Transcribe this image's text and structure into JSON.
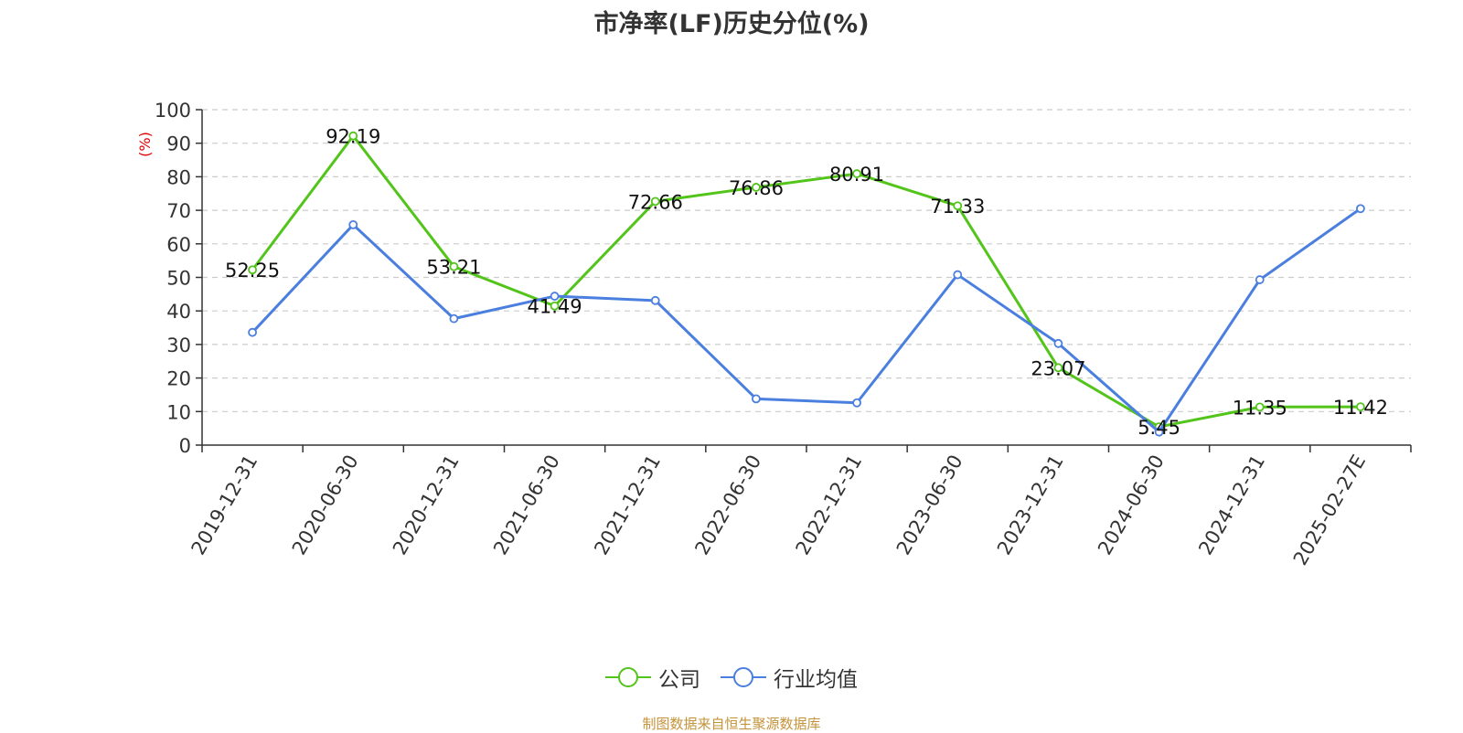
{
  "chart_data": {
    "type": "line",
    "title": "市净率(LF)历史分位(%)",
    "ylabel": "(%)",
    "xlabel": "",
    "ylim": [
      0,
      100
    ],
    "yticks": [
      0,
      10,
      20,
      30,
      40,
      50,
      60,
      70,
      80,
      90,
      100
    ],
    "categories": [
      "2019-12-31",
      "2020-06-30",
      "2020-12-31",
      "2021-06-30",
      "2021-12-31",
      "2022-06-30",
      "2022-12-31",
      "2023-06-30",
      "2023-12-31",
      "2024-06-30",
      "2024-12-31",
      "2025-02-27E"
    ],
    "series": [
      {
        "name": "公司",
        "color": "#52c41a",
        "values": [
          52.25,
          92.19,
          53.21,
          41.49,
          72.66,
          76.86,
          80.91,
          71.33,
          23.07,
          5.45,
          11.35,
          11.42
        ],
        "show_labels": true
      },
      {
        "name": "行业均值",
        "color": "#4b7fdf",
        "values": [
          33.6,
          65.7,
          37.7,
          44.4,
          43.1,
          13.8,
          12.6,
          50.8,
          30.3,
          3.9,
          49.3,
          70.5
        ],
        "show_labels": false
      }
    ],
    "grid": true,
    "legend_position": "bottom-center",
    "source_note": "制图数据来自恒生聚源数据库"
  }
}
